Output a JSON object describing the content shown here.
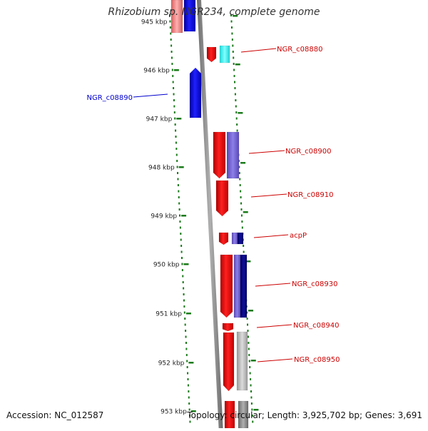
{
  "title": "Rhizobium sp. NGR234, complete genome",
  "footer": {
    "accession": "Accession: NC_012587",
    "summary": "Topology: circular; Length: 3,925,702 bp; Genes: 3,691"
  },
  "ruler": {
    "labels": [
      "945 kbp",
      "946 kbp",
      "947 kbp",
      "948 kbp",
      "949 kbp",
      "950 kbp",
      "951 kbp",
      "952 kbp",
      "953 kbp"
    ]
  },
  "colors": {
    "forward": "#ff0000",
    "reverse": "#0000ff",
    "backbone": "#808080",
    "ticks": "#1a7a1a",
    "label_red": "#cc0000",
    "label_blue": "#0000cc"
  },
  "gene_labels": [
    {
      "text": "NGR_c08880",
      "color": "#cc0000"
    },
    {
      "text": "NGR_c08890",
      "color": "#0000cc"
    },
    {
      "text": "NGR_c08900",
      "color": "#cc0000"
    },
    {
      "text": "NGR_c08910",
      "color": "#cc0000"
    },
    {
      "text": "acpP",
      "color": "#cc0000"
    },
    {
      "text": "NGR_c08930",
      "color": "#cc0000"
    },
    {
      "text": "NGR_c08940",
      "color": "#cc0000"
    },
    {
      "text": "NGR_c08950",
      "color": "#cc0000"
    }
  ]
}
